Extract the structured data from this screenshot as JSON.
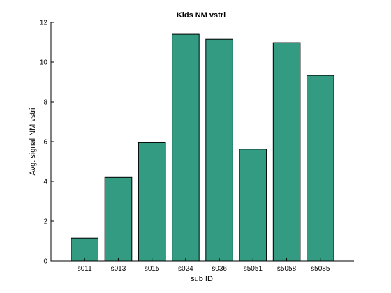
{
  "chart_data": {
    "type": "bar",
    "title": "Kids NM vstri",
    "xlabel": "sub ID",
    "ylabel": "Avg. signal NM vstri",
    "categories": [
      "s011",
      "s013",
      "s015",
      "s024",
      "s036",
      "s5051",
      "s5058",
      "s5085"
    ],
    "values": [
      1.15,
      4.2,
      5.95,
      11.4,
      11.15,
      5.62,
      10.98,
      9.33
    ],
    "ylim": [
      0,
      12
    ],
    "yticks": [
      "0",
      "2",
      "4",
      "6",
      "8",
      "10",
      "12"
    ],
    "bar_color": "#339b82",
    "grid": false
  }
}
